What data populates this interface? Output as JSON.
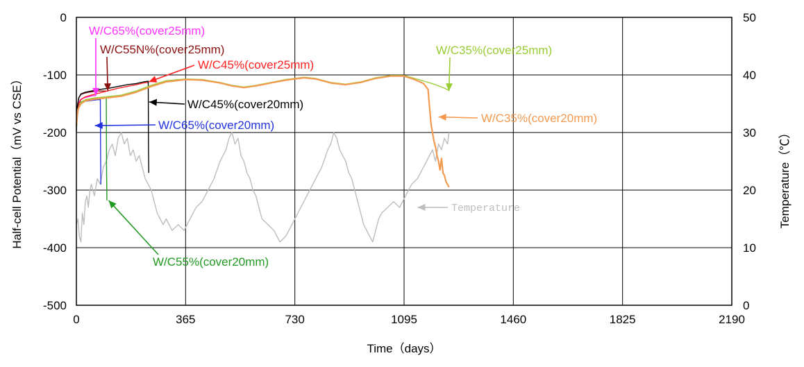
{
  "chart_data": {
    "type": "line",
    "title": "",
    "xlabel": "Time（days）",
    "ylabel": "Half-cell Potential（mV vs CSE）",
    "y2label": "Temperature（℃）",
    "xlim": [
      0,
      2190
    ],
    "ylim": [
      -500,
      0
    ],
    "y2lim": [
      0,
      50
    ],
    "xticks": [
      "0",
      "365",
      "730",
      "1095",
      "1460",
      "1825",
      "2190"
    ],
    "yticks": [
      "0",
      "-100",
      "-200",
      "-300",
      "-400",
      "-500"
    ],
    "y2ticks": [
      "50",
      "40",
      "30",
      "20",
      "10",
      "0"
    ],
    "grid": true,
    "colors": {
      "wc65_25": "#ff33ff",
      "wc55n_25": "#8b1010",
      "wc45_25": "#ff2020",
      "wc35_25": "#99cc33",
      "wc45_20": "#000000",
      "wc65_20": "#2233dd",
      "wc35_20": "#f39a50",
      "wc55_20": "#229922",
      "temperature": "#bdbdbd"
    },
    "series": [
      {
        "key": "wc65_25",
        "axis": "left",
        "x": [
          0,
          3,
          8,
          15,
          25,
          40,
          55,
          65
        ],
        "y": [
          -190,
          -160,
          -148,
          -142,
          -140,
          -138,
          -136,
          -136
        ]
      },
      {
        "key": "wc55n_25",
        "axis": "left",
        "x": [
          0,
          3,
          8,
          15,
          25,
          40,
          55,
          70,
          85,
          100
        ],
        "y": [
          -185,
          -155,
          -140,
          -134,
          -132,
          -130,
          -129,
          -128,
          -128,
          -128
        ]
      },
      {
        "key": "wc45_25",
        "axis": "left",
        "x": [
          0,
          3,
          8,
          15,
          30,
          50,
          80,
          110,
          140,
          170,
          200,
          225,
          240
        ],
        "y": [
          -192,
          -165,
          -150,
          -143,
          -138,
          -135,
          -131,
          -127,
          -123,
          -120,
          -117,
          -114,
          -113
        ]
      },
      {
        "key": "wc45_20",
        "axis": "left",
        "x": [
          0,
          3,
          8,
          15,
          30,
          50,
          80,
          110,
          140,
          170,
          200,
          225,
          240,
          241,
          242
        ],
        "y": [
          -186,
          -155,
          -140,
          -133,
          -130,
          -128,
          -125,
          -123,
          -120,
          -117,
          -115,
          -112,
          -111,
          -230,
          -270
        ]
      },
      {
        "key": "wc65_20",
        "axis": "left",
        "x": [
          0,
          3,
          8,
          15,
          25,
          40,
          55,
          70,
          80,
          81,
          82
        ],
        "y": [
          -198,
          -170,
          -155,
          -148,
          -146,
          -145,
          -144,
          -143,
          -143,
          -240,
          -290
        ]
      },
      {
        "key": "wc55_20",
        "axis": "left",
        "x": [
          0,
          3,
          8,
          15,
          30,
          50,
          70,
          90,
          100,
          101,
          102
        ],
        "y": [
          -195,
          -170,
          -155,
          -147,
          -144,
          -142,
          -141,
          -140,
          -140,
          -270,
          -318
        ]
      },
      {
        "key": "wc35_25",
        "axis": "left",
        "x": [
          0,
          5,
          15,
          30,
          60,
          100,
          150,
          200,
          250,
          300,
          365,
          420,
          480,
          520,
          560,
          600,
          650,
          700,
          760,
          800,
          850,
          900,
          950,
          1000,
          1050,
          1095,
          1130,
          1170,
          1200,
          1230,
          1245
        ],
        "y": [
          -190,
          -160,
          -148,
          -143,
          -140,
          -138,
          -135,
          -128,
          -118,
          -110,
          -107,
          -108,
          -113,
          -118,
          -121,
          -118,
          -113,
          -108,
          -104,
          -106,
          -113,
          -116,
          -112,
          -105,
          -101,
          -101,
          -106,
          -112,
          -117,
          -123,
          -127
        ]
      },
      {
        "key": "wc35_20",
        "axis": "left",
        "x": [
          0,
          5,
          15,
          30,
          60,
          100,
          150,
          200,
          250,
          300,
          365,
          420,
          480,
          520,
          560,
          600,
          650,
          700,
          760,
          800,
          850,
          900,
          950,
          1000,
          1050,
          1095,
          1130,
          1160,
          1175,
          1180,
          1185,
          1190,
          1195,
          1200,
          1205,
          1210,
          1215,
          1220,
          1225,
          1230,
          1235,
          1240,
          1245
        ],
        "y": [
          -188,
          -160,
          -150,
          -145,
          -142,
          -140,
          -137,
          -130,
          -120,
          -112,
          -108,
          -109,
          -114,
          -119,
          -122,
          -119,
          -114,
          -109,
          -105,
          -107,
          -114,
          -117,
          -113,
          -106,
          -102,
          -102,
          -108,
          -115,
          -125,
          -155,
          -185,
          -200,
          -215,
          -225,
          -240,
          -250,
          -265,
          -245,
          -270,
          -275,
          -285,
          -290,
          -295
        ]
      },
      {
        "key": "temperature",
        "axis": "right",
        "x": [
          0,
          5,
          10,
          15,
          20,
          25,
          30,
          35,
          40,
          45,
          50,
          60,
          70,
          80,
          90,
          100,
          110,
          120,
          130,
          140,
          150,
          160,
          170,
          180,
          190,
          200,
          210,
          220,
          230,
          240,
          250,
          260,
          270,
          280,
          290,
          300,
          320,
          340,
          360,
          380,
          400,
          420,
          440,
          460,
          480,
          500,
          510,
          520,
          530,
          540,
          550,
          560,
          570,
          580,
          590,
          600,
          610,
          620,
          640,
          660,
          680,
          700,
          720,
          740,
          760,
          780,
          800,
          820,
          840,
          850,
          860,
          870,
          880,
          890,
          900,
          910,
          920,
          930,
          940,
          950,
          960,
          970,
          980,
          990,
          1000,
          1010,
          1020,
          1040,
          1060,
          1080,
          1100,
          1120,
          1140,
          1160,
          1180,
          1190,
          1200,
          1210,
          1220,
          1230,
          1240,
          1245
        ],
        "y": [
          14,
          15,
          12,
          11,
          16,
          14,
          18,
          19,
          17,
          20,
          21,
          19,
          22,
          21,
          24,
          25,
          27,
          28,
          26,
          29,
          30,
          28,
          29,
          26,
          27,
          25,
          26,
          24,
          22,
          21,
          20,
          18,
          16,
          15,
          14,
          15,
          13,
          14,
          13,
          15,
          17,
          18,
          20,
          22,
          25,
          27,
          29,
          30,
          28,
          29,
          26,
          25,
          23,
          22,
          20,
          19,
          17,
          15,
          14,
          13,
          11,
          12,
          14,
          16,
          18,
          20,
          22,
          24,
          27,
          28,
          30,
          29,
          27,
          26,
          25,
          23,
          22,
          20,
          18,
          16,
          14,
          13,
          12,
          11,
          13,
          15,
          16,
          17,
          18,
          17,
          19,
          21,
          22,
          24,
          26,
          27,
          25,
          28,
          27,
          29,
          28,
          30
        ]
      }
    ],
    "annotations": [
      {
        "key": "wc65_25",
        "text": "W/C65%(cover25mm)",
        "arrow_x": 65,
        "arrow_y": -136
      },
      {
        "key": "wc55n_25",
        "text": "W/C55N%(cover25mm)",
        "arrow_x": 105,
        "arrow_y": -128
      },
      {
        "key": "wc45_25",
        "text": "W/C45%(cover25mm)",
        "arrow_x": 242,
        "arrow_y": -112
      },
      {
        "key": "wc35_25",
        "text": "W/C35%(cover25mm)",
        "arrow_x": 1245,
        "arrow_y": -128
      },
      {
        "key": "wc45_20",
        "text": "W/C45%(cover20mm)",
        "arrow_x": 243,
        "arrow_y": -147
      },
      {
        "key": "wc35_20",
        "text": "W/C35%(cover20mm)",
        "arrow_x": 1210,
        "arrow_y": -173
      },
      {
        "key": "wc65_20",
        "text": "W/C65%(cover20mm)",
        "arrow_x": 62,
        "arrow_y": -188
      },
      {
        "key": "temperature",
        "text": "Temperature",
        "arrow_x": 1140,
        "arrow_y": -330
      },
      {
        "key": "wc55_20",
        "text": "W/C55%(cover20mm)",
        "arrow_x": 108,
        "arrow_y": -318
      }
    ]
  }
}
